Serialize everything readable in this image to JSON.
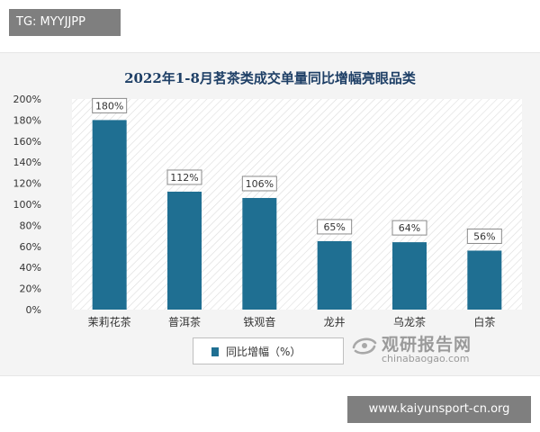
{
  "overlay": {
    "tg_text": "TG: MYYJJPP",
    "url_text": "www.kaiyunsport-cn.org"
  },
  "watermark": {
    "name_cn": "观研报告网",
    "domain": "chinabaogao.com"
  },
  "chart_data": {
    "type": "bar",
    "title": "2022年1-8月茗茶类成交单量同比增幅亮眼品类",
    "categories": [
      "茉莉花茶",
      "普洱茶",
      "铁观音",
      "龙井",
      "乌龙茶",
      "白茶"
    ],
    "series": [
      {
        "name": "同比增幅（%）",
        "values": [
          180,
          112,
          106,
          65,
          64,
          56
        ],
        "color": "#1f6f92"
      }
    ],
    "data_labels": [
      "180%",
      "112%",
      "106%",
      "65%",
      "64%",
      "56%"
    ],
    "y_tick_labels": [
      "0%",
      "20%",
      "40%",
      "60%",
      "80%",
      "100%",
      "120%",
      "140%",
      "160%",
      "180%",
      "200%"
    ],
    "ylim": [
      0,
      200
    ],
    "y_step": 20,
    "xlabel": "",
    "ylabel": "",
    "grid": false,
    "background_pattern": "diagonal-hatch",
    "legend_position": "bottom",
    "colors": {
      "bar": "#1f6f92",
      "title": "#1e3f66",
      "axis_text": "#333333"
    }
  }
}
